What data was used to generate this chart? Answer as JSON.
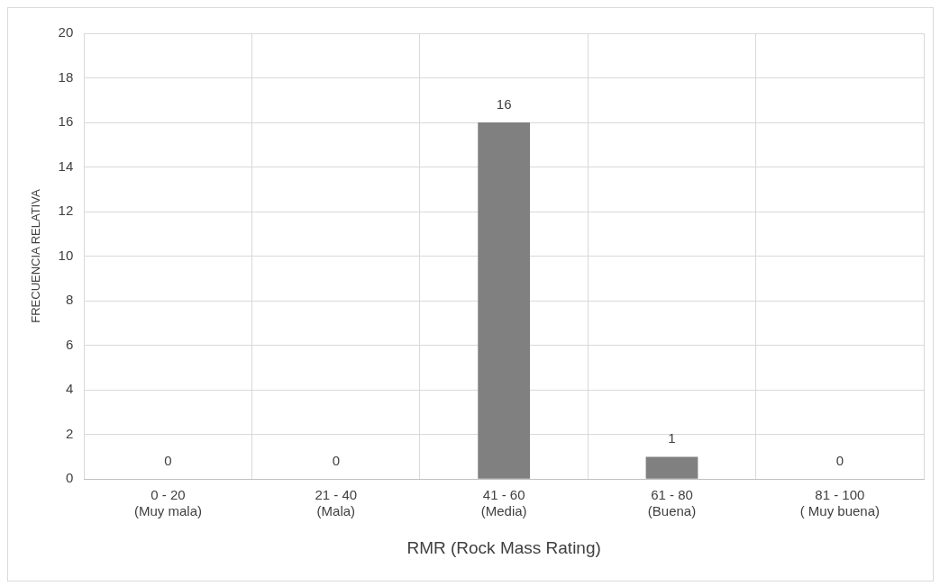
{
  "chart_data": {
    "type": "bar",
    "xlabel": "RMR (Rock Mass Rating)",
    "ylabel": "FRECUENCIA RELATIVA",
    "categories": [
      "0 - 20\n(Muy mala)",
      "21 - 40\n(Mala)",
      "41 - 60\n(Media)",
      "61 - 80\n(Buena)",
      "81 - 100\n( Muy buena)"
    ],
    "values": [
      0,
      0,
      16,
      1,
      0
    ],
    "color": "#808080",
    "ylim": [
      0,
      20
    ],
    "yticks": [
      0,
      2,
      4,
      6,
      8,
      10,
      12,
      14,
      16,
      18,
      20
    ],
    "grid": true,
    "data_labels": true,
    "legend": false
  }
}
